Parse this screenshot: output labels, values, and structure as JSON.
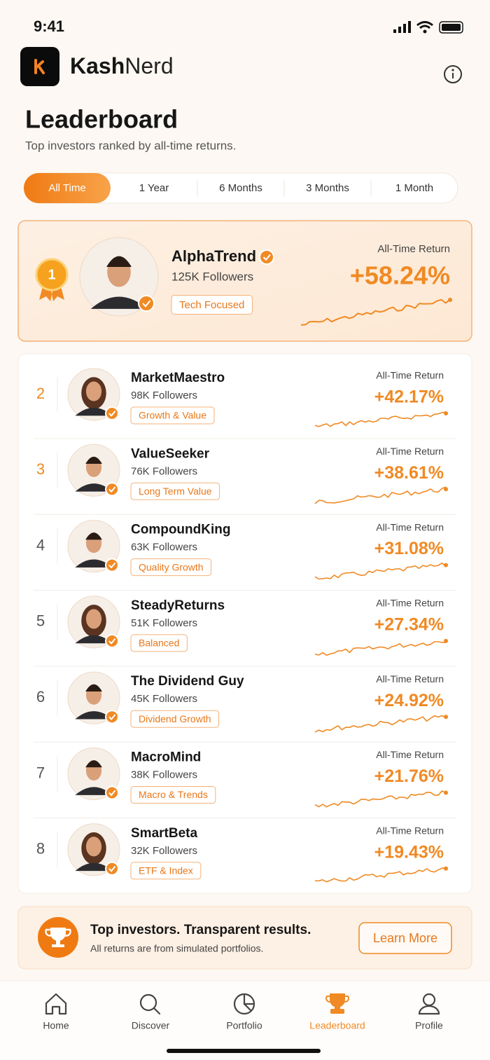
{
  "status_bar": {
    "time": "9:41"
  },
  "header": {
    "brand_bold": "Kash",
    "brand_light": "Nerd"
  },
  "page": {
    "title": "Leaderboard",
    "subtitle": "Top investors ranked by all-time returns."
  },
  "tabs": {
    "items": [
      "All Time",
      "1 Year",
      "6 Months",
      "3 Months",
      "1 Month"
    ],
    "active": 0
  },
  "leader": {
    "rank": 1,
    "name": "AlphaTrend",
    "followers": "125K Followers",
    "tag": "Tech Focused",
    "return_label": "All-Time Return",
    "return": "+58.24%"
  },
  "rows": [
    {
      "rank": 2,
      "name": "MarketMaestro",
      "followers": "98K Followers",
      "tag": "Growth & Value",
      "return_label": "All-Time Return",
      "return": "+42.17%"
    },
    {
      "rank": 3,
      "name": "ValueSeeker",
      "followers": "76K Followers",
      "tag": "Long Term Value",
      "return_label": "All-Time Return",
      "return": "+38.61%"
    },
    {
      "rank": 4,
      "name": "CompoundKing",
      "followers": "63K Followers",
      "tag": "Quality Growth",
      "return_label": "All-Time Return",
      "return": "+31.08%"
    },
    {
      "rank": 5,
      "name": "SteadyReturns",
      "followers": "51K Followers",
      "tag": "Balanced",
      "return_label": "All-Time Return",
      "return": "+27.34%"
    },
    {
      "rank": 6,
      "name": "The Dividend Guy",
      "followers": "45K Followers",
      "tag": "Dividend Growth",
      "return_label": "All-Time Return",
      "return": "+24.92%"
    },
    {
      "rank": 7,
      "name": "MacroMind",
      "followers": "38K Followers",
      "tag": "Macro & Trends",
      "return_label": "All-Time Return",
      "return": "+21.76%"
    },
    {
      "rank": 8,
      "name": "SmartBeta",
      "followers": "32K Followers",
      "tag": "ETF & Index",
      "return_label": "All-Time Return",
      "return": "+19.43%"
    }
  ],
  "banner": {
    "title": "Top investors. Transparent results.",
    "text": "All returns are from simulated portfolios.",
    "button": "Learn More"
  },
  "nav": {
    "items": [
      "Home",
      "Discover",
      "Portfolio",
      "Leaderboard",
      "Profile"
    ],
    "active": 3
  }
}
